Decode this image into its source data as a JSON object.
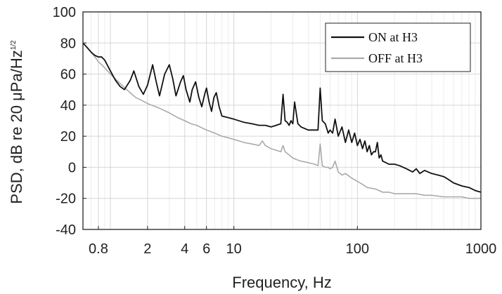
{
  "chart_data": {
    "type": "line",
    "title": "",
    "xlabel": "Frequency, Hz",
    "ylabel": "PSD, dB re 20 μPa/Hz",
    "ylabel_superscript": "1/2",
    "x_scale": "log",
    "xlim": [
      0.6,
      1000
    ],
    "ylim": [
      -40,
      100
    ],
    "x_ticks": [
      0.8,
      2,
      4,
      6,
      10,
      100,
      1000
    ],
    "x_tick_labels": [
      "0.8",
      "2",
      "4",
      "6",
      "10",
      "100",
      "1000"
    ],
    "y_ticks": [
      -40,
      -20,
      0,
      20,
      40,
      60,
      80,
      100
    ],
    "y_tick_labels": [
      "-40",
      "-20",
      "0",
      "20",
      "40",
      "60",
      "80",
      "100"
    ],
    "grid": true,
    "legend_position": "top-right",
    "series": [
      {
        "name": "ON at H3",
        "color": "#111111",
        "x": [
          0.6,
          0.65,
          0.7,
          0.75,
          0.8,
          0.85,
          0.9,
          1.0,
          1.1,
          1.2,
          1.3,
          1.45,
          1.55,
          1.7,
          1.85,
          2.0,
          2.2,
          2.35,
          2.5,
          2.75,
          3.0,
          3.2,
          3.4,
          3.7,
          3.9,
          4.1,
          4.4,
          4.6,
          4.9,
          5.2,
          5.5,
          5.8,
          6.0,
          6.3,
          6.6,
          6.9,
          7.2,
          7.6,
          8.0,
          9.0,
          10,
          12,
          14,
          16,
          18,
          20,
          22,
          24,
          25,
          26,
          27,
          28,
          29,
          30,
          31,
          33,
          35,
          40,
          45,
          48,
          50,
          52,
          55,
          58,
          60,
          63,
          66,
          70,
          75,
          80,
          85,
          90,
          95,
          100,
          105,
          110,
          115,
          120,
          125,
          130,
          135,
          140,
          145,
          150,
          155,
          160,
          170,
          180,
          200,
          220,
          250,
          280,
          300,
          320,
          350,
          400,
          450,
          500,
          550,
          600,
          700,
          800,
          900,
          1000
        ],
        "y": [
          80,
          77,
          74,
          72,
          71,
          71,
          69,
          62,
          56,
          52,
          50,
          56,
          62,
          52,
          47,
          53,
          66,
          55,
          46,
          60,
          66,
          57,
          46,
          55,
          59,
          50,
          42,
          50,
          55,
          45,
          39,
          47,
          51,
          42,
          36,
          45,
          48,
          39,
          33,
          32,
          31,
          29,
          28,
          27,
          27,
          26,
          27,
          28,
          47,
          30,
          29,
          27,
          30,
          28,
          42,
          28,
          26,
          24,
          24,
          24,
          51,
          30,
          28,
          22,
          24,
          22,
          31,
          20,
          26,
          16,
          24,
          16,
          22,
          14,
          18,
          12,
          17,
          10,
          14,
          8,
          10,
          10,
          16,
          6,
          8,
          4,
          3,
          2,
          2,
          1,
          -1,
          -3,
          -1,
          -4,
          -2,
          -4,
          -5,
          -6,
          -8,
          -10,
          -12,
          -13,
          -15,
          -16
        ]
      },
      {
        "name": "OFF at H3",
        "color": "#aaaaaa",
        "x": [
          0.6,
          0.65,
          0.7,
          0.75,
          0.8,
          0.85,
          0.9,
          1.0,
          1.2,
          1.4,
          1.6,
          1.8,
          2.0,
          2.5,
          3.0,
          3.5,
          4.0,
          4.5,
          5.0,
          6.0,
          7.0,
          8.0,
          9.0,
          10,
          11,
          12,
          14,
          16,
          17,
          18,
          20,
          22,
          24,
          25,
          26,
          28,
          30,
          32,
          35,
          40,
          45,
          48,
          50,
          52,
          55,
          58,
          60,
          63,
          66,
          70,
          75,
          80,
          90,
          100,
          110,
          120,
          140,
          150,
          160,
          180,
          200,
          250,
          300,
          350,
          400,
          500,
          600,
          700,
          800,
          900,
          1000
        ],
        "y": [
          80,
          77,
          74,
          71,
          68,
          66,
          64,
          60,
          54,
          49,
          45,
          43,
          41,
          38,
          35,
          32,
          30,
          28,
          27,
          24,
          22,
          20,
          19,
          18,
          17,
          16,
          15,
          14,
          17,
          14,
          12,
          11,
          10,
          14,
          10,
          8,
          6,
          5,
          4,
          3,
          2,
          1,
          15,
          1,
          0,
          0,
          -1,
          0,
          4,
          -3,
          -5,
          -4,
          -7,
          -9,
          -11,
          -13,
          -14,
          -15,
          -16,
          -16,
          -17,
          -17,
          -17,
          -18,
          -18,
          -19,
          -19,
          -19,
          -20,
          -20,
          -20
        ]
      }
    ]
  }
}
